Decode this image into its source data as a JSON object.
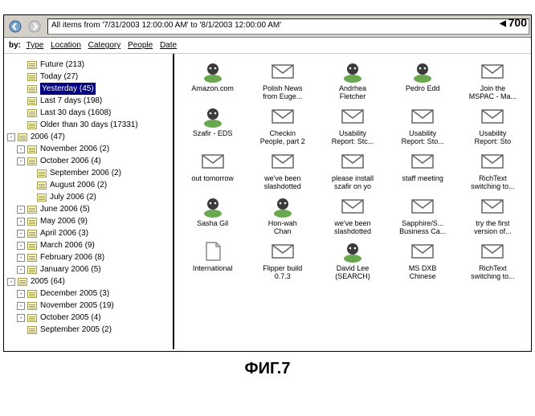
{
  "annotation_label": "700",
  "figure_label": "ФИГ.7",
  "toolbar": {
    "address_text": "All items from '7/31/2003 12:00:00 AM' to '8/1/2003 12:00:00 AM'"
  },
  "filterbar": {
    "prefix": "by:",
    "links": [
      "Type",
      "Location",
      "Category",
      "People",
      "Date"
    ]
  },
  "tree": [
    {
      "indent": 1,
      "toggle": "",
      "label": "Future (213)"
    },
    {
      "indent": 1,
      "toggle": "",
      "label": "Today (27)"
    },
    {
      "indent": 1,
      "toggle": "",
      "label": "Yesterday (45)",
      "selected": true
    },
    {
      "indent": 1,
      "toggle": "",
      "label": "Last 7 days (198)"
    },
    {
      "indent": 1,
      "toggle": "",
      "label": "Last 30 days (1608)"
    },
    {
      "indent": 1,
      "toggle": "",
      "label": "Older than 30 days (17331)"
    },
    {
      "indent": 0,
      "toggle": "-",
      "label": "2006 (47)"
    },
    {
      "indent": 1,
      "toggle": "-",
      "label": "November 2006 (2)"
    },
    {
      "indent": 1,
      "toggle": "-",
      "label": "October 2006 (4)"
    },
    {
      "indent": 2,
      "toggle": "",
      "label": "September 2006 (2)"
    },
    {
      "indent": 2,
      "toggle": "",
      "label": "August 2006 (2)"
    },
    {
      "indent": 2,
      "toggle": "",
      "label": "July 2006 (2)"
    },
    {
      "indent": 1,
      "toggle": "-",
      "label": "June 2006 (5)"
    },
    {
      "indent": 1,
      "toggle": "-",
      "label": "May 2006 (9)"
    },
    {
      "indent": 1,
      "toggle": "-",
      "label": "April 2006 (3)"
    },
    {
      "indent": 1,
      "toggle": "-",
      "label": "March 2006 (9)"
    },
    {
      "indent": 1,
      "toggle": "-",
      "label": "February 2006 (8)"
    },
    {
      "indent": 1,
      "toggle": "-",
      "label": "January 2006 (5)"
    },
    {
      "indent": 0,
      "toggle": "-",
      "label": "2005 (64)"
    },
    {
      "indent": 1,
      "toggle": "-",
      "label": "December 2005 (3)"
    },
    {
      "indent": 1,
      "toggle": "-",
      "label": "November 2005 (19)"
    },
    {
      "indent": 1,
      "toggle": "-",
      "label": "October 2005 (4)"
    },
    {
      "indent": 1,
      "toggle": "",
      "label": "September 2005 (2)"
    }
  ],
  "grid_items": [
    {
      "icon": "person",
      "label": "Amazon.com"
    },
    {
      "icon": "mail",
      "label": "Polish News from Euge..."
    },
    {
      "icon": "person",
      "label": "Andrhea Fletcher"
    },
    {
      "icon": "person",
      "label": "Pedro Edd"
    },
    {
      "icon": "mail",
      "label": "Join the MSPAC - Ma..."
    },
    {
      "icon": "person",
      "label": "Szafir - EDS"
    },
    {
      "icon": "mail",
      "label": "Checkin People, part 2"
    },
    {
      "icon": "mail",
      "label": "Usability Report: Stc..."
    },
    {
      "icon": "mail",
      "label": "Usability Report: Sto..."
    },
    {
      "icon": "mail",
      "label": "Usability Report: Sto"
    },
    {
      "icon": "mail",
      "label": "out tomorrow"
    },
    {
      "icon": "mail",
      "label": "we've been slashdotted"
    },
    {
      "icon": "mail",
      "label": "please install szafir on yo"
    },
    {
      "icon": "mail",
      "label": "staff meeting"
    },
    {
      "icon": "mail",
      "label": "RichText switching to..."
    },
    {
      "icon": "person",
      "label": "Sasha Gil"
    },
    {
      "icon": "person",
      "label": "Hon-wah Chan"
    },
    {
      "icon": "mail",
      "label": "we've been slashdotted"
    },
    {
      "icon": "mail",
      "label": "Sapphire/S... Business Ca..."
    },
    {
      "icon": "mail",
      "label": "try the first version of..."
    },
    {
      "icon": "doc",
      "label": "International"
    },
    {
      "icon": "mail",
      "label": "Flipper build 0.7.3"
    },
    {
      "icon": "person",
      "label": "David Lee (SEARCH)"
    },
    {
      "icon": "mail",
      "label": "MS DXB Chinese"
    },
    {
      "icon": "mail",
      "label": "RichText switching to..."
    }
  ],
  "icons": {
    "person": {
      "head": "#3b3b3b",
      "body": "#6aa84f"
    },
    "mail": {
      "stroke": "#666",
      "fill": "#fff"
    },
    "doc": {
      "fill": "#fff",
      "stroke": "#888"
    }
  },
  "colors": {
    "toolbar_bg": "#d4d0c8",
    "selection_bg": "#000080"
  }
}
